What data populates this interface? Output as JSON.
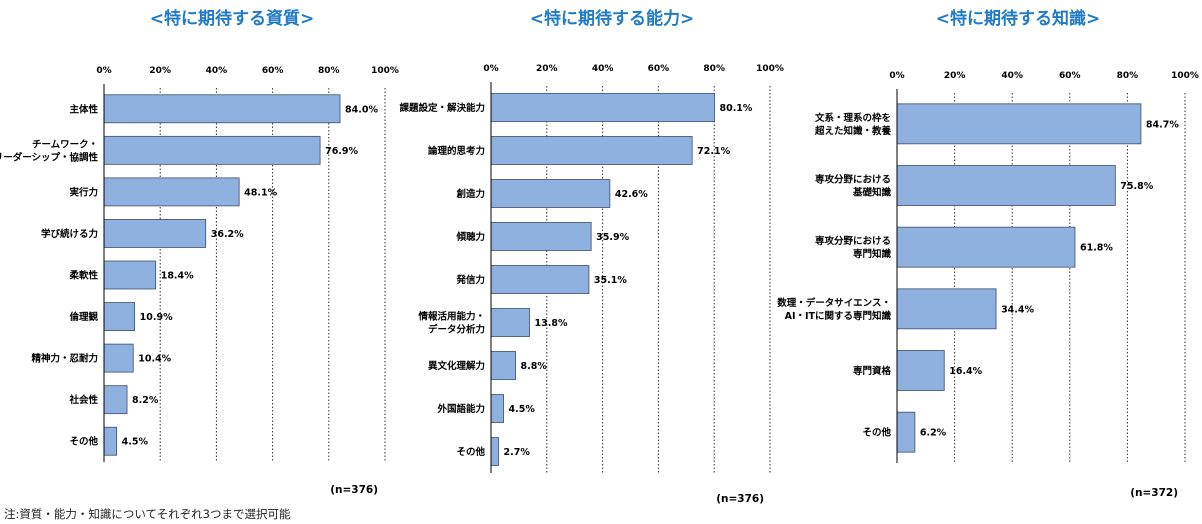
{
  "note": "注:資質・能力・知識についてそれぞれ3つまで選択可能",
  "colors": {
    "title": "#1f7ac8",
    "bar_fill": "#8eb1e0",
    "bar_stroke": "#3c4f6b",
    "grid": "#333333",
    "axis": "#000000"
  },
  "chart_data": [
    {
      "type": "bar",
      "orientation": "horizontal",
      "title": "<特に期待する資質>",
      "categories": [
        [
          "主体性"
        ],
        [
          "チームワーク・",
          "リーダーシップ・協調性"
        ],
        [
          "実行力"
        ],
        [
          "学び続ける力"
        ],
        [
          "柔軟性"
        ],
        [
          "倫理観"
        ],
        [
          "精神力・忍耐力"
        ],
        [
          "社会性"
        ],
        [
          "その他"
        ]
      ],
      "values": [
        84.0,
        76.9,
        48.1,
        36.2,
        18.4,
        10.9,
        10.4,
        8.2,
        4.5
      ],
      "value_labels": [
        "84.0%",
        "76.9%",
        "48.1%",
        "36.2%",
        "18.4%",
        "10.9%",
        "10.4%",
        "8.2%",
        "4.5%"
      ],
      "xlim": [
        0,
        100
      ],
      "xticks": [
        "0%",
        "20%",
        "40%",
        "60%",
        "80%",
        "100%"
      ],
      "n_label": "(n=376)",
      "grid": true
    },
    {
      "type": "bar",
      "orientation": "horizontal",
      "title": "<特に期待する能力>",
      "categories": [
        [
          "課題設定・解決能力"
        ],
        [
          "論理的思考力"
        ],
        [
          "創造力"
        ],
        [
          "傾聴力"
        ],
        [
          "発信力"
        ],
        [
          "情報活用能力・",
          "データ分析力"
        ],
        [
          "異文化理解力"
        ],
        [
          "外国語能力"
        ],
        [
          "その他"
        ]
      ],
      "values": [
        80.1,
        72.1,
        42.6,
        35.9,
        35.1,
        13.8,
        8.8,
        4.5,
        2.7
      ],
      "value_labels": [
        "80.1%",
        "72.1%",
        "42.6%",
        "35.9%",
        "35.1%",
        "13.8%",
        "8.8%",
        "4.5%",
        "2.7%"
      ],
      "xlim": [
        0,
        100
      ],
      "xticks": [
        "0%",
        "20%",
        "40%",
        "60%",
        "80%",
        "100%"
      ],
      "n_label": "(n=376)",
      "grid": true
    },
    {
      "type": "bar",
      "orientation": "horizontal",
      "title": "<特に期待する知識>",
      "categories": [
        [
          "文系・理系の枠を",
          "超えた知識・教養"
        ],
        [
          "専攻分野における",
          "基礎知識"
        ],
        [
          "専攻分野における",
          "専門知識"
        ],
        [
          "数理・データサイエンス・",
          "AI・ITに関する専門知識"
        ],
        [
          "専門資格"
        ],
        [
          "その他"
        ]
      ],
      "values": [
        84.7,
        75.8,
        61.8,
        34.4,
        16.4,
        6.2
      ],
      "value_labels": [
        "84.7%",
        "75.8%",
        "61.8%",
        "34.4%",
        "16.4%",
        "6.2%"
      ],
      "xlim": [
        0,
        100
      ],
      "xticks": [
        "0%",
        "20%",
        "40%",
        "60%",
        "80%",
        "100%"
      ],
      "n_label": "(n=372)",
      "grid": true
    }
  ]
}
